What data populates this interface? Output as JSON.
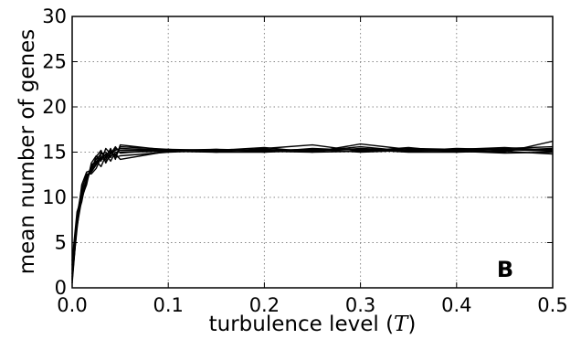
{
  "chart_data": {
    "type": "line",
    "title": "",
    "xlabel": "turbulence level (",
    "xlabel_symbol": "T",
    "xlabel_close": ")",
    "ylabel": "mean number of genes",
    "xlim": [
      0.0,
      0.5
    ],
    "ylim": [
      0,
      30
    ],
    "xticks": [
      "0.0",
      "0.1",
      "0.2",
      "0.3",
      "0.4",
      "0.5"
    ],
    "yticks": [
      "0",
      "5",
      "10",
      "15",
      "20",
      "25",
      "30"
    ],
    "grid": true,
    "annotation": "B",
    "line_color": "#000000",
    "x": [
      0.0,
      0.005,
      0.01,
      0.015,
      0.02,
      0.025,
      0.03,
      0.035,
      0.04,
      0.045,
      0.05,
      0.1,
      0.15,
      0.2,
      0.25,
      0.3,
      0.35,
      0.4,
      0.45,
      0.5
    ],
    "series": [
      {
        "values": [
          1.0,
          7.5,
          10.5,
          12.0,
          13.0,
          14.5,
          15.2,
          13.8,
          14.8,
          15.2,
          15.4,
          15.2,
          15.1,
          15.3,
          15.1,
          15.4,
          15.2,
          15.3,
          15.2,
          15.4
        ]
      },
      {
        "values": [
          2.0,
          6.8,
          9.8,
          11.6,
          13.4,
          13.9,
          14.2,
          14.8,
          14.0,
          15.0,
          15.0,
          15.1,
          15.3,
          15.0,
          15.4,
          15.2,
          15.1,
          15.4,
          15.3,
          15.1
        ]
      },
      {
        "values": [
          1.5,
          8.0,
          11.0,
          12.4,
          12.8,
          13.6,
          14.6,
          14.2,
          15.0,
          14.6,
          15.6,
          15.3,
          15.0,
          15.4,
          15.8,
          15.1,
          15.5,
          15.0,
          15.4,
          15.6
        ]
      },
      {
        "values": [
          0.5,
          7.0,
          10.2,
          11.8,
          13.6,
          14.0,
          13.4,
          14.6,
          15.2,
          14.4,
          14.6,
          15.0,
          15.2,
          15.1,
          15.0,
          15.9,
          15.3,
          15.2,
          15.0,
          16.2
        ]
      },
      {
        "values": [
          2.5,
          7.8,
          9.5,
          12.2,
          13.2,
          14.2,
          14.8,
          15.0,
          14.4,
          15.4,
          15.2,
          15.2,
          15.1,
          15.2,
          15.3,
          15.0,
          15.2,
          15.1,
          14.9,
          15.0
        ]
      },
      {
        "values": [
          1.2,
          6.5,
          10.8,
          12.6,
          12.6,
          13.2,
          14.4,
          14.0,
          14.6,
          14.8,
          14.2,
          15.1,
          15.0,
          15.0,
          15.2,
          15.3,
          15.0,
          15.0,
          15.1,
          14.8
        ]
      },
      {
        "values": [
          3.0,
          8.4,
          10.0,
          11.4,
          13.8,
          14.6,
          14.0,
          15.4,
          14.8,
          15.6,
          14.9,
          15.3,
          15.2,
          15.5,
          15.0,
          15.1,
          15.4,
          15.3,
          15.5,
          15.2
        ]
      },
      {
        "values": [
          0.8,
          7.2,
          11.4,
          12.8,
          13.0,
          13.8,
          15.0,
          14.4,
          15.4,
          14.2,
          15.8,
          15.2,
          15.3,
          15.2,
          15.1,
          15.6,
          15.1,
          15.2,
          15.3,
          15.3
        ]
      }
    ]
  }
}
